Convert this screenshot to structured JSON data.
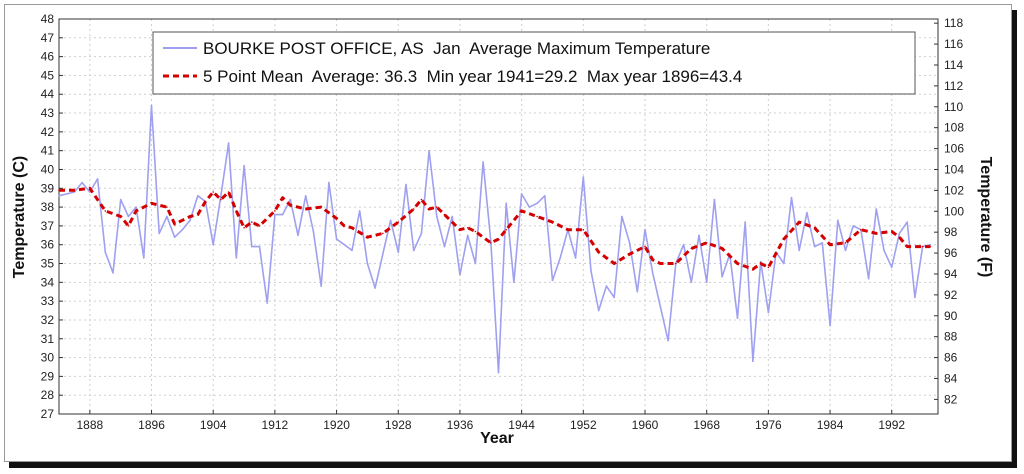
{
  "chart_data": {
    "type": "line",
    "xlabel": "Year",
    "ylabel": "Temperature (C)",
    "y2label": "Temperature (F)",
    "xlim": [
      1884,
      1998
    ],
    "ylim": [
      27,
      48
    ],
    "y2lim": [
      80.6,
      118.4
    ],
    "x_ticks": [
      1888,
      1896,
      1904,
      1912,
      1920,
      1928,
      1936,
      1944,
      1952,
      1960,
      1968,
      1976,
      1984,
      1992
    ],
    "y_ticks": [
      27,
      28,
      29,
      30,
      31,
      32,
      33,
      34,
      35,
      36,
      37,
      38,
      39,
      40,
      41,
      42,
      43,
      44,
      45,
      46,
      47,
      48
    ],
    "y2_ticks": [
      82,
      84,
      86,
      88,
      90,
      92,
      94,
      96,
      98,
      100,
      102,
      104,
      106,
      108,
      110,
      112,
      114,
      116,
      118
    ],
    "grid": true,
    "legend_position": "top-right",
    "series": [
      {
        "name": "BOURKE POST OFFICE, AS  Jan  Average Maximum Temperature",
        "color": "#9fa0f0",
        "style": "solid",
        "x": [
          1884,
          1885,
          1886,
          1887,
          1888,
          1889,
          1890,
          1891,
          1892,
          1893,
          1894,
          1895,
          1896,
          1897,
          1898,
          1899,
          1900,
          1901,
          1902,
          1903,
          1904,
          1905,
          1906,
          1907,
          1908,
          1909,
          1910,
          1911,
          1912,
          1913,
          1914,
          1915,
          1916,
          1917,
          1918,
          1919,
          1920,
          1921,
          1922,
          1923,
          1924,
          1925,
          1926,
          1927,
          1928,
          1929,
          1930,
          1931,
          1932,
          1933,
          1934,
          1935,
          1936,
          1937,
          1938,
          1939,
          1940,
          1941,
          1942,
          1943,
          1944,
          1945,
          1946,
          1947,
          1948,
          1949,
          1950,
          1951,
          1952,
          1953,
          1954,
          1955,
          1956,
          1957,
          1958,
          1959,
          1960,
          1961,
          1962,
          1963,
          1964,
          1965,
          1966,
          1967,
          1968,
          1969,
          1970,
          1971,
          1972,
          1973,
          1974,
          1975,
          1976,
          1977,
          1978,
          1979,
          1980,
          1981,
          1982,
          1983,
          1984,
          1985,
          1986,
          1987,
          1988,
          1989,
          1990,
          1991,
          1992,
          1993,
          1994,
          1995,
          1996,
          1997
        ],
        "values": [
          38.6,
          38.7,
          38.8,
          39.3,
          38.8,
          39.5,
          35.6,
          34.5,
          38.4,
          37.5,
          38.0,
          35.3,
          43.4,
          36.6,
          37.5,
          36.4,
          36.8,
          37.3,
          38.6,
          38.3,
          36.0,
          38.6,
          41.4,
          35.3,
          40.2,
          35.9,
          35.9,
          32.9,
          37.6,
          37.6,
          38.4,
          36.5,
          38.6,
          36.7,
          33.8,
          39.3,
          36.3,
          36.0,
          35.7,
          37.8,
          35.0,
          33.7,
          35.5,
          37.3,
          35.6,
          39.2,
          35.7,
          36.6,
          41.0,
          37.5,
          35.9,
          37.5,
          34.4,
          36.5,
          35.0,
          40.4,
          36.2,
          29.2,
          38.2,
          34.0,
          38.7,
          38.0,
          38.2,
          38.6,
          34.1,
          35.3,
          36.8,
          35.3,
          39.6,
          34.6,
          32.5,
          33.8,
          33.2,
          37.5,
          36.1,
          33.5,
          36.8,
          34.5,
          32.7,
          30.9,
          35.0,
          36.0,
          34.0,
          36.5,
          34.0,
          38.4,
          34.3,
          35.5,
          32.1,
          37.2,
          29.8,
          35.1,
          32.4,
          35.6,
          35.0,
          38.5,
          35.7,
          37.7,
          35.9,
          36.1,
          31.7,
          37.3,
          35.7,
          37.0,
          36.8,
          34.2,
          37.9,
          35.7,
          34.8,
          36.6,
          37.2,
          33.2,
          35.9,
          36.0
        ]
      },
      {
        "name": "5 Point Mean  Average: 36.3  Min year 1941=29.2  Max year 1896=43.4",
        "color": "#d40000",
        "style": "dashed",
        "x": [
          1884,
          1886,
          1888,
          1890,
          1892,
          1893,
          1894,
          1896,
          1898,
          1899,
          1900,
          1901,
          1902,
          1903,
          1904,
          1905,
          1906,
          1907,
          1908,
          1909,
          1910,
          1912,
          1913,
          1914,
          1916,
          1918,
          1920,
          1921,
          1922,
          1924,
          1926,
          1928,
          1930,
          1931,
          1932,
          1933,
          1934,
          1936,
          1937,
          1938,
          1940,
          1941,
          1942,
          1944,
          1946,
          1948,
          1950,
          1952,
          1954,
          1956,
          1958,
          1960,
          1961,
          1962,
          1964,
          1966,
          1968,
          1970,
          1972,
          1974,
          1975,
          1976,
          1978,
          1980,
          1982,
          1984,
          1986,
          1988,
          1990,
          1992,
          1993,
          1994,
          1996,
          1997
        ],
        "values": [
          38.9,
          38.9,
          39.0,
          37.8,
          37.5,
          37.0,
          37.8,
          38.2,
          38.0,
          37.1,
          37.3,
          37.5,
          37.6,
          38.3,
          38.8,
          38.4,
          38.8,
          37.8,
          36.9,
          37.2,
          37.0,
          37.8,
          38.5,
          38.1,
          37.9,
          38.0,
          37.4,
          37.0,
          36.9,
          36.4,
          36.6,
          37.2,
          37.9,
          38.4,
          37.9,
          38.0,
          37.6,
          36.8,
          36.9,
          36.7,
          36.1,
          36.3,
          36.8,
          37.8,
          37.5,
          37.2,
          36.8,
          36.8,
          35.6,
          35.0,
          35.5,
          35.9,
          35.2,
          35.0,
          35.0,
          35.8,
          36.1,
          35.8,
          35.0,
          34.7,
          35.0,
          34.8,
          36.3,
          37.2,
          36.9,
          36.0,
          36.1,
          36.8,
          36.6,
          36.7,
          36.4,
          35.9,
          35.9,
          35.9
        ]
      }
    ]
  }
}
